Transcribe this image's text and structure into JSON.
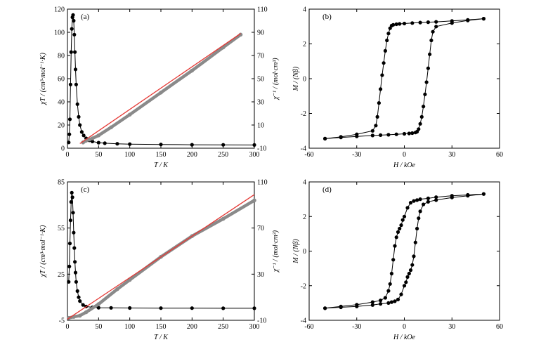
{
  "chart_data": [
    {
      "type": "scatter",
      "panel_label": "(a)",
      "xlabel": "T / K",
      "ylabel": "χT / (cm³·mol⁻¹·K)",
      "y2label": "χ⁻¹ / (mol·cm³)",
      "xlim": [
        0,
        300
      ],
      "ylim": [
        0,
        120
      ],
      "y2lim": [
        -10,
        110
      ],
      "xticks": [
        0,
        50,
        100,
        150,
        200,
        250,
        300
      ],
      "yticks": [
        0,
        20,
        40,
        60,
        80,
        100,
        120
      ],
      "y2ticks": [
        -10,
        10,
        30,
        50,
        70,
        90,
        110
      ],
      "series": [
        {
          "axis": "left",
          "style": "black-dots-line",
          "x": [
            2,
            3,
            4,
            5,
            6,
            7,
            8,
            9,
            10,
            11,
            12,
            13,
            14,
            16,
            18,
            20,
            23,
            26,
            30,
            35,
            40,
            50,
            60,
            80,
            100,
            150,
            200,
            250,
            300
          ],
          "y": [
            5,
            12,
            25,
            55,
            83,
            103,
            113,
            115,
            110,
            98,
            83,
            68,
            55,
            38,
            27,
            20,
            14,
            11,
            8.5,
            6.8,
            5.8,
            4.8,
            4.3,
            3.8,
            3.5,
            3.2,
            3.0,
            2.9,
            2.8
          ]
        },
        {
          "axis": "right",
          "style": "grey-dots",
          "x": [
            25,
            30,
            35,
            40,
            50,
            70,
            100,
            150,
            200,
            250,
            278
          ],
          "y": [
            -5,
            -3.5,
            -2.5,
            -1.5,
            1,
            8,
            19,
            38,
            57,
            77,
            88
          ]
        },
        {
          "axis": "right",
          "style": "red-line",
          "x": [
            20,
            278
          ],
          "y": [
            -6,
            89
          ]
        }
      ]
    },
    {
      "type": "scatter",
      "panel_label": "(b)",
      "xlabel": "H / kOe",
      "ylabel": "M / (Nβ)",
      "xlim": [
        -60,
        60
      ],
      "ylim": [
        -4,
        4
      ],
      "xticks": [
        -60,
        -30,
        0,
        30,
        60
      ],
      "yticks": [
        -4,
        -2,
        0,
        2,
        4
      ],
      "series": [
        {
          "name": "",
          "style": "black-dots-line",
          "x": [
            50,
            40,
            30,
            20,
            15,
            10,
            5,
            0,
            -3,
            -5,
            -7,
            -8,
            -9,
            -10,
            -11,
            -12,
            -13,
            -14,
            -15,
            -16,
            -17,
            -18,
            -20,
            -30,
            -40,
            -50
          ],
          "y": [
            3.45,
            3.38,
            3.32,
            3.27,
            3.25,
            3.23,
            3.2,
            3.17,
            3.15,
            3.13,
            3.1,
            3.05,
            2.9,
            2.6,
            2.2,
            1.6,
            0.9,
            0.2,
            -0.6,
            -1.4,
            -2.2,
            -2.7,
            -3.0,
            -3.2,
            -3.35,
            -3.45
          ]
        },
        {
          "name": "",
          "style": "black-dots-line",
          "x": [
            -50,
            -40,
            -30,
            -20,
            -15,
            -10,
            -5,
            0,
            3,
            5,
            7,
            8,
            9,
            10,
            11,
            12,
            13,
            14,
            15,
            16,
            17,
            18,
            20,
            30,
            40,
            50
          ],
          "y": [
            -3.45,
            -3.38,
            -3.32,
            -3.27,
            -3.25,
            -3.23,
            -3.2,
            -3.17,
            -3.15,
            -3.13,
            -3.1,
            -3.05,
            -2.9,
            -2.6,
            -2.2,
            -1.6,
            -0.9,
            -0.2,
            0.6,
            1.4,
            2.2,
            2.7,
            3.0,
            3.2,
            3.35,
            3.45
          ]
        }
      ]
    },
    {
      "type": "scatter",
      "panel_label": "(c)",
      "xlabel": "T / K",
      "ylabel": "χT / (cm³·mol⁻¹·K)",
      "y2label": "χ⁻¹ / (mol·cm³)",
      "xlim": [
        0,
        300
      ],
      "ylim": [
        -5,
        85
      ],
      "y2lim": [
        -10,
        110
      ],
      "xticks": [
        0,
        50,
        100,
        150,
        200,
        250,
        300
      ],
      "yticks": [
        -5,
        25,
        55,
        85
      ],
      "y2ticks": [
        -10,
        30,
        70,
        110
      ],
      "series": [
        {
          "axis": "left",
          "style": "black-dots-line",
          "x": [
            2,
            3,
            4,
            5,
            6,
            7,
            8,
            9,
            10,
            11,
            12,
            13,
            14,
            16,
            18,
            20,
            25,
            30,
            40,
            50,
            70,
            100,
            150,
            200,
            250,
            300
          ],
          "y": [
            20,
            30,
            45,
            60,
            72,
            78,
            75,
            65,
            52,
            42,
            33,
            26,
            20,
            14,
            10,
            7.5,
            5,
            4,
            3.4,
            3.2,
            3.1,
            3.0,
            2.9,
            2.9,
            2.8,
            2.8
          ]
        },
        {
          "axis": "right",
          "style": "grey-dots",
          "x": [
            2,
            10,
            20,
            30,
            50,
            80,
            100,
            150,
            200,
            250,
            300
          ],
          "y": [
            -8,
            -7,
            -6,
            -3,
            4,
            17,
            25,
            45,
            63,
            78,
            94
          ]
        },
        {
          "axis": "right",
          "style": "red-line",
          "x": [
            0,
            300
          ],
          "y": [
            -9,
            99
          ]
        }
      ]
    },
    {
      "type": "scatter",
      "panel_label": "(d)",
      "xlabel": "H / kOe",
      "ylabel": "M / (Nβ)",
      "xlim": [
        -60,
        60
      ],
      "ylim": [
        -4,
        4
      ],
      "xticks": [
        -60,
        -30,
        0,
        30,
        60
      ],
      "yticks": [
        -4,
        -2,
        0,
        2,
        4
      ],
      "series": [
        {
          "name": "",
          "style": "black-dots-line",
          "x": [
            50,
            40,
            30,
            20,
            15,
            10,
            8,
            6,
            4,
            2,
            0,
            -1,
            -2,
            -3,
            -4,
            -5,
            -6,
            -7,
            -8,
            -9,
            -10,
            -12,
            -15,
            -20,
            -30,
            -40,
            -50
          ],
          "y": [
            3.3,
            3.25,
            3.2,
            3.12,
            3.05,
            3.0,
            2.95,
            2.9,
            2.8,
            2.5,
            2.0,
            1.8,
            1.5,
            1.3,
            1.1,
            0.8,
            0.3,
            -0.5,
            -1.3,
            -1.9,
            -2.3,
            -2.7,
            -2.85,
            -2.95,
            -3.1,
            -3.2,
            -3.3
          ]
        },
        {
          "name": "",
          "style": "black-dots-line",
          "x": [
            -50,
            -40,
            -30,
            -20,
            -15,
            -10,
            -8,
            -6,
            -4,
            -2,
            0,
            1,
            2,
            3,
            4,
            5,
            6,
            7,
            8,
            9,
            10,
            12,
            15,
            20,
            30,
            40,
            50
          ],
          "y": [
            -3.3,
            -3.25,
            -3.2,
            -3.12,
            -3.05,
            -3.0,
            -2.95,
            -2.9,
            -2.8,
            -2.5,
            -2.0,
            -1.8,
            -1.5,
            -1.3,
            -1.1,
            -0.8,
            -0.3,
            0.5,
            1.3,
            1.9,
            2.3,
            2.7,
            2.85,
            2.95,
            3.1,
            3.2,
            3.3
          ]
        }
      ]
    }
  ]
}
